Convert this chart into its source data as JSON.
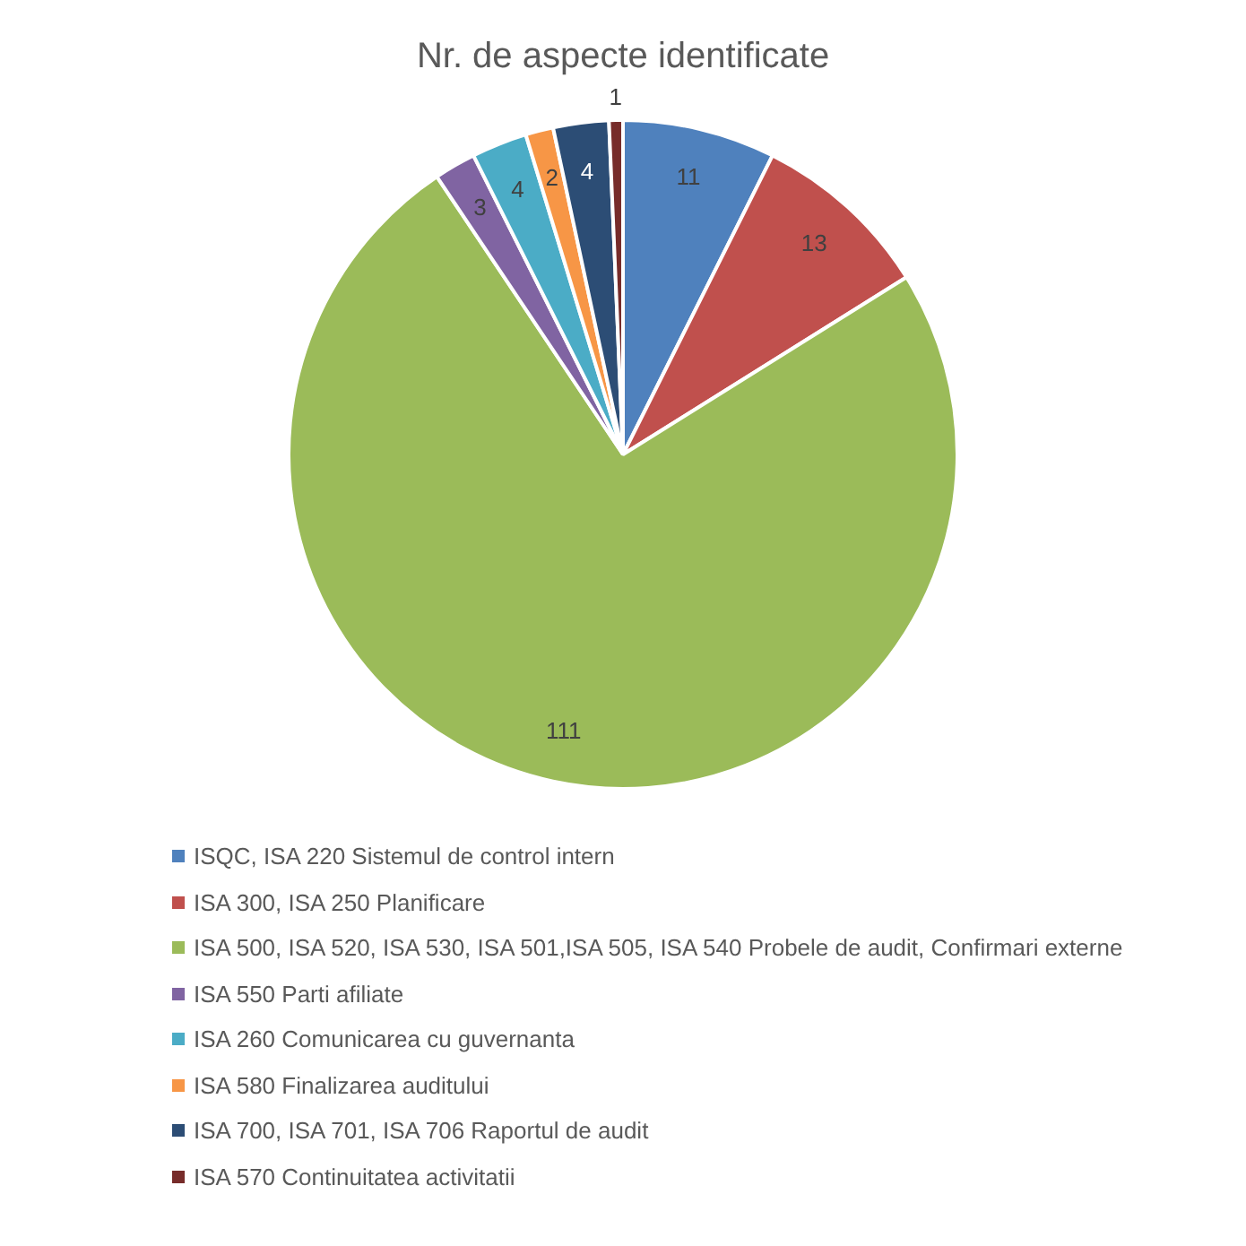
{
  "chart_data": {
    "type": "pie",
    "title": "Nr. de aspecte identificate",
    "categories": [
      "ISQC, ISA 220 Sistemul de control intern",
      "ISA 300, ISA 250 Planificare",
      "ISA 500, ISA 520, ISA 530, ISA 501,ISA 505, ISA 540 Probele de audit, Confirmari externe",
      "ISA 550 Parti afiliate",
      "ISA 260 Comunicarea cu guvernanta",
      "ISA 580 Finalizarea auditului",
      "ISA 700, ISA 701, ISA 706 Raportul de audit",
      "ISA 570 Continuitatea activitatii"
    ],
    "values": [
      11,
      13,
      111,
      3,
      4,
      2,
      4,
      1
    ],
    "colors": [
      "#4f81bd",
      "#c0504d",
      "#9bbb59",
      "#8064a2",
      "#4bacc6",
      "#f79646",
      "#2c4d75",
      "#772c2a"
    ],
    "data_labels": true,
    "legend": "bottom"
  }
}
